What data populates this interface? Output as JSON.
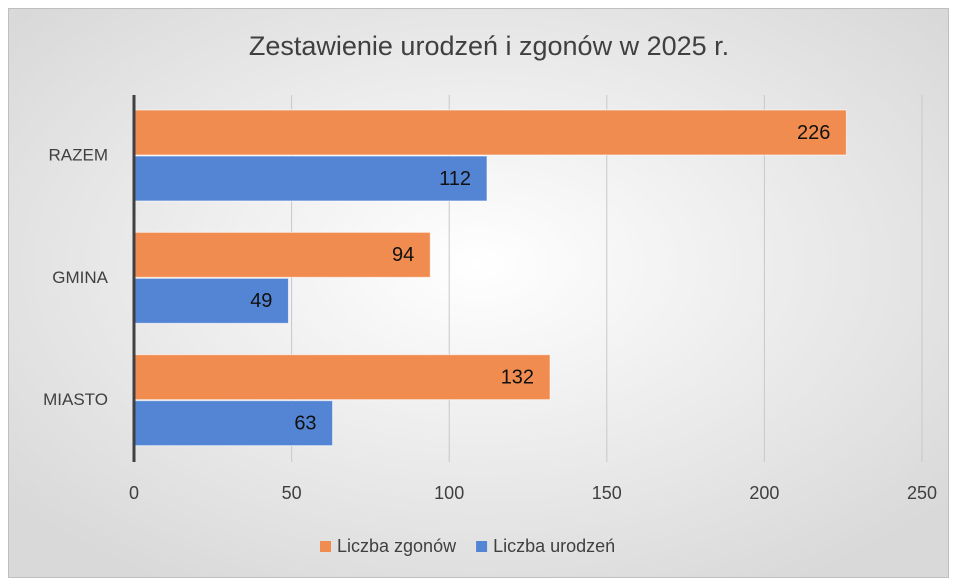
{
  "chart_data": {
    "type": "barh",
    "title": "Zestawienie urodzeń i zgonów w 2025 r.",
    "categories": [
      "RAZEM",
      "GMINA",
      "MIASTO"
    ],
    "series": [
      {
        "name": "Liczba zgonów",
        "color": "#f08c4f",
        "values": [
          226,
          94,
          132
        ]
      },
      {
        "name": "Liczba urodzeń",
        "color": "#5485d4",
        "values": [
          112,
          49,
          63
        ]
      }
    ],
    "xlim": [
      0,
      250
    ],
    "xticks": [
      0,
      50,
      100,
      150,
      200,
      250
    ],
    "grid": true,
    "legend": "bottom"
  }
}
